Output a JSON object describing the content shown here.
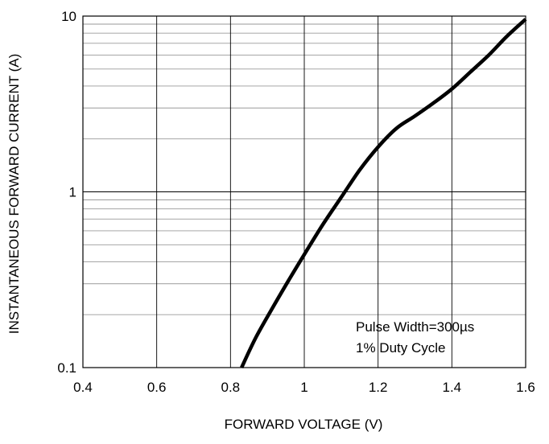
{
  "chart_data": {
    "type": "line",
    "title": "",
    "xlabel": "FORWARD VOLTAGE (V)",
    "ylabel": "INSTANTANEOUS FORWARD CURRENT (A)",
    "xlim": [
      0.4,
      1.6
    ],
    "ylim": [
      0.1,
      10
    ],
    "yscale": "log",
    "grid": true,
    "x_ticks": [
      0.4,
      0.6,
      0.8,
      1.0,
      1.2,
      1.4,
      1.6
    ],
    "x_tick_labels": [
      "0.4",
      "0.6",
      "0.8",
      "1",
      "1.2",
      "1.4",
      "1.6"
    ],
    "y_ticks": [
      0.1,
      1,
      10
    ],
    "y_tick_labels": [
      "0.1",
      "1",
      "10"
    ],
    "annotations": [
      "Pulse Width=300µs",
      "1% Duty Cycle"
    ],
    "series": [
      {
        "color": "#000000",
        "x": [
          0.83,
          0.87,
          0.92,
          0.96,
          1.0,
          1.05,
          1.1,
          1.15,
          1.2,
          1.25,
          1.3,
          1.35,
          1.4,
          1.45,
          1.5,
          1.55,
          1.6
        ],
        "y": [
          0.1,
          0.15,
          0.23,
          0.32,
          0.44,
          0.65,
          0.93,
          1.33,
          1.8,
          2.3,
          2.7,
          3.2,
          3.85,
          4.8,
          6.0,
          7.7,
          9.6
        ]
      }
    ]
  }
}
